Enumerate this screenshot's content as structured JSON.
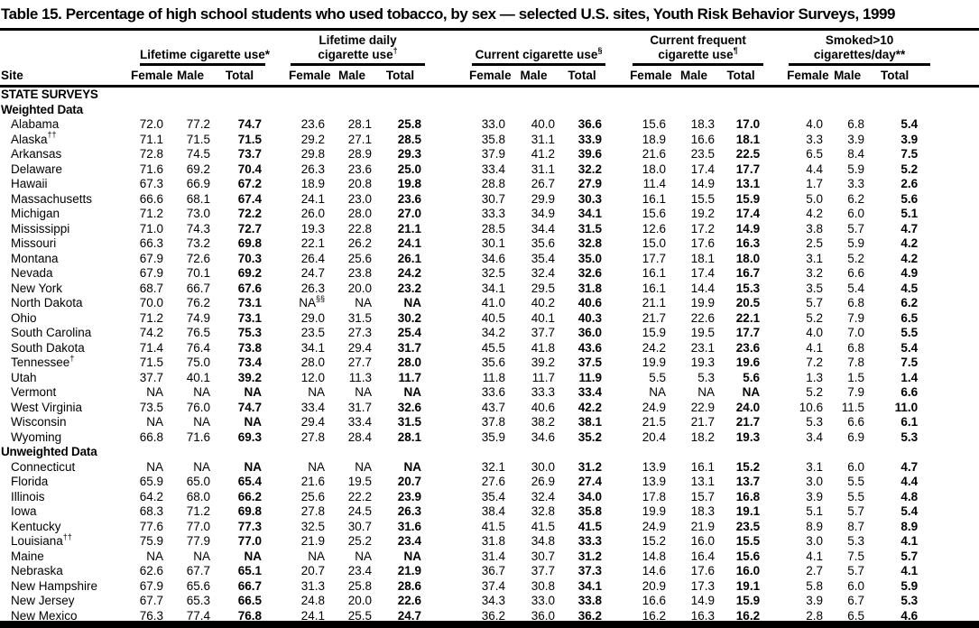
{
  "title": "Table 15. Percentage of high school students who used tobacco, by sex — selected U.S. sites, Youth Risk Behavior Surveys, 1999",
  "table": {
    "site_header": "Site",
    "groups": [
      {
        "lines": [
          "Lifetime cigarette use*"
        ]
      },
      {
        "lines": [
          "Lifetime daily",
          "cigarette use^†"
        ]
      },
      {
        "lines": [
          "Current cigarette use^§"
        ]
      },
      {
        "lines": [
          "Current frequent",
          "cigarette use^¶"
        ]
      },
      {
        "lines": [
          "Smoked>10",
          "cigarettes/day**"
        ]
      }
    ],
    "subheaders": [
      "Female",
      "Male",
      "Total"
    ],
    "rows": [
      {
        "kind": "section",
        "label": "STATE SURVEYS"
      },
      {
        "kind": "section",
        "label": "Weighted Data"
      },
      {
        "kind": "data",
        "site": "Alabama",
        "values": [
          "72.0",
          "77.2",
          "74.7",
          "23.6",
          "28.1",
          "25.8",
          "33.0",
          "40.0",
          "36.6",
          "15.6",
          "18.3",
          "17.0",
          "4.0",
          "6.8",
          "5.4"
        ]
      },
      {
        "kind": "data",
        "site": "Alaska^††",
        "values": [
          "71.1",
          "71.5",
          "71.5",
          "29.2",
          "27.1",
          "28.5",
          "35.8",
          "31.1",
          "33.9",
          "18.9",
          "16.6",
          "18.1",
          "3.3",
          "3.9",
          "3.9"
        ]
      },
      {
        "kind": "data",
        "site": "Arkansas",
        "values": [
          "72.8",
          "74.5",
          "73.7",
          "29.8",
          "28.9",
          "29.3",
          "37.9",
          "41.2",
          "39.6",
          "21.6",
          "23.5",
          "22.5",
          "6.5",
          "8.4",
          "7.5"
        ]
      },
      {
        "kind": "data",
        "site": "Delaware",
        "values": [
          "71.6",
          "69.2",
          "70.4",
          "26.3",
          "23.6",
          "25.0",
          "33.4",
          "31.1",
          "32.2",
          "18.0",
          "17.4",
          "17.7",
          "4.4",
          "5.9",
          "5.2"
        ]
      },
      {
        "kind": "data",
        "site": "Hawaii",
        "values": [
          "67.3",
          "66.9",
          "67.2",
          "18.9",
          "20.8",
          "19.8",
          "28.8",
          "26.7",
          "27.9",
          "11.4",
          "14.9",
          "13.1",
          "1.7",
          "3.3",
          "2.6"
        ]
      },
      {
        "kind": "data",
        "site": "Massachusetts",
        "values": [
          "66.6",
          "68.1",
          "67.4",
          "24.1",
          "23.0",
          "23.6",
          "30.7",
          "29.9",
          "30.3",
          "16.1",
          "15.5",
          "15.9",
          "5.0",
          "6.2",
          "5.6"
        ]
      },
      {
        "kind": "data",
        "site": "Michigan",
        "values": [
          "71.2",
          "73.0",
          "72.2",
          "26.0",
          "28.0",
          "27.0",
          "33.3",
          "34.9",
          "34.1",
          "15.6",
          "19.2",
          "17.4",
          "4.2",
          "6.0",
          "5.1"
        ]
      },
      {
        "kind": "data",
        "site": "Mississippi",
        "values": [
          "71.0",
          "74.3",
          "72.7",
          "19.3",
          "22.8",
          "21.1",
          "28.5",
          "34.4",
          "31.5",
          "12.6",
          "17.2",
          "14.9",
          "3.8",
          "5.7",
          "4.7"
        ]
      },
      {
        "kind": "data",
        "site": "Missouri",
        "values": [
          "66.3",
          "73.2",
          "69.8",
          "22.1",
          "26.2",
          "24.1",
          "30.1",
          "35.6",
          "32.8",
          "15.0",
          "17.6",
          "16.3",
          "2.5",
          "5.9",
          "4.2"
        ]
      },
      {
        "kind": "data",
        "site": "Montana",
        "values": [
          "67.9",
          "72.6",
          "70.3",
          "26.4",
          "25.6",
          "26.1",
          "34.6",
          "35.4",
          "35.0",
          "17.7",
          "18.1",
          "18.0",
          "3.1",
          "5.2",
          "4.2"
        ]
      },
      {
        "kind": "data",
        "site": "Nevada",
        "values": [
          "67.9",
          "70.1",
          "69.2",
          "24.7",
          "23.8",
          "24.2",
          "32.5",
          "32.4",
          "32.6",
          "16.1",
          "17.4",
          "16.7",
          "3.2",
          "6.6",
          "4.9"
        ]
      },
      {
        "kind": "data",
        "site": "New York",
        "values": [
          "68.7",
          "66.7",
          "67.6",
          "26.3",
          "20.0",
          "23.2",
          "34.1",
          "29.5",
          "31.8",
          "16.1",
          "14.4",
          "15.3",
          "3.5",
          "5.4",
          "4.5"
        ]
      },
      {
        "kind": "data",
        "site": "North Dakota",
        "values": [
          "70.0",
          "76.2",
          "73.1",
          "NA^§§",
          "NA",
          "NA",
          "41.0",
          "40.2",
          "40.6",
          "21.1",
          "19.9",
          "20.5",
          "5.7",
          "6.8",
          "6.2"
        ]
      },
      {
        "kind": "data",
        "site": "Ohio",
        "values": [
          "71.2",
          "74.9",
          "73.1",
          "29.0",
          "31.5",
          "30.2",
          "40.5",
          "40.1",
          "40.3",
          "21.7",
          "22.6",
          "22.1",
          "5.2",
          "7.9",
          "6.5"
        ]
      },
      {
        "kind": "data",
        "site": "South Carolina",
        "values": [
          "74.2",
          "76.5",
          "75.3",
          "23.5",
          "27.3",
          "25.4",
          "34.2",
          "37.7",
          "36.0",
          "15.9",
          "19.5",
          "17.7",
          "4.0",
          "7.0",
          "5.5"
        ]
      },
      {
        "kind": "data",
        "site": "South Dakota",
        "values": [
          "71.4",
          "76.4",
          "73.8",
          "34.1",
          "29.4",
          "31.7",
          "45.5",
          "41.8",
          "43.6",
          "24.2",
          "23.1",
          "23.6",
          "4.1",
          "6.8",
          "5.4"
        ]
      },
      {
        "kind": "data",
        "site": "Tennessee^†",
        "values": [
          "71.5",
          "75.0",
          "73.4",
          "28.0",
          "27.7",
          "28.0",
          "35.6",
          "39.2",
          "37.5",
          "19.9",
          "19.3",
          "19.6",
          "7.2",
          "7.8",
          "7.5"
        ]
      },
      {
        "kind": "data",
        "site": "Utah",
        "values": [
          "37.7",
          "40.1",
          "39.2",
          "12.0",
          "11.3",
          "11.7",
          "11.8",
          "11.7",
          "11.9",
          "5.5",
          "5.3",
          "5.6",
          "1.3",
          "1.5",
          "1.4"
        ]
      },
      {
        "kind": "data",
        "site": "Vermont",
        "values": [
          "NA",
          "NA",
          "NA",
          "NA",
          "NA",
          "NA",
          "33.6",
          "33.3",
          "33.4",
          "NA",
          "NA",
          "NA",
          "5.2",
          "7.9",
          "6.6"
        ]
      },
      {
        "kind": "data",
        "site": "West Virginia",
        "values": [
          "73.5",
          "76.0",
          "74.7",
          "33.4",
          "31.7",
          "32.6",
          "43.7",
          "40.6",
          "42.2",
          "24.9",
          "22.9",
          "24.0",
          "10.6",
          "11.5",
          "11.0"
        ]
      },
      {
        "kind": "data",
        "site": "Wisconsin",
        "values": [
          "NA",
          "NA",
          "NA",
          "29.4",
          "33.4",
          "31.5",
          "37.8",
          "38.2",
          "38.1",
          "21.5",
          "21.7",
          "21.7",
          "5.3",
          "6.6",
          "6.1"
        ]
      },
      {
        "kind": "data",
        "site": "Wyoming",
        "values": [
          "66.8",
          "71.6",
          "69.3",
          "27.8",
          "28.4",
          "28.1",
          "35.9",
          "34.6",
          "35.2",
          "20.4",
          "18.2",
          "19.3",
          "3.4",
          "6.9",
          "5.3"
        ]
      },
      {
        "kind": "section",
        "label": "Unweighted Data"
      },
      {
        "kind": "data",
        "site": "Connecticut",
        "values": [
          "NA",
          "NA",
          "NA",
          "NA",
          "NA",
          "NA",
          "32.1",
          "30.0",
          "31.2",
          "13.9",
          "16.1",
          "15.2",
          "3.1",
          "6.0",
          "4.7"
        ]
      },
      {
        "kind": "data",
        "site": "Florida",
        "values": [
          "65.9",
          "65.0",
          "65.4",
          "21.6",
          "19.5",
          "20.7",
          "27.6",
          "26.9",
          "27.4",
          "13.9",
          "13.1",
          "13.7",
          "3.0",
          "5.5",
          "4.4"
        ]
      },
      {
        "kind": "data",
        "site": "Illinois",
        "values": [
          "64.2",
          "68.0",
          "66.2",
          "25.6",
          "22.2",
          "23.9",
          "35.4",
          "32.4",
          "34.0",
          "17.8",
          "15.7",
          "16.8",
          "3.9",
          "5.5",
          "4.8"
        ]
      },
      {
        "kind": "data",
        "site": "Iowa",
        "values": [
          "68.3",
          "71.2",
          "69.8",
          "27.8",
          "24.5",
          "26.3",
          "38.4",
          "32.8",
          "35.8",
          "19.9",
          "18.3",
          "19.1",
          "5.1",
          "5.7",
          "5.4"
        ]
      },
      {
        "kind": "data",
        "site": "Kentucky",
        "values": [
          "77.6",
          "77.0",
          "77.3",
          "32.5",
          "30.7",
          "31.6",
          "41.5",
          "41.5",
          "41.5",
          "24.9",
          "21.9",
          "23.5",
          "8.9",
          "8.7",
          "8.9"
        ]
      },
      {
        "kind": "data",
        "site": "Louisiana^††",
        "values": [
          "75.9",
          "77.9",
          "77.0",
          "21.9",
          "25.2",
          "23.4",
          "31.8",
          "34.8",
          "33.3",
          "15.2",
          "16.0",
          "15.5",
          "3.0",
          "5.3",
          "4.1"
        ]
      },
      {
        "kind": "data",
        "site": "Maine",
        "values": [
          "NA",
          "NA",
          "NA",
          "NA",
          "NA",
          "NA",
          "31.4",
          "30.7",
          "31.2",
          "14.8",
          "16.4",
          "15.6",
          "4.1",
          "7.5",
          "5.7"
        ]
      },
      {
        "kind": "data",
        "site": "Nebraska",
        "values": [
          "62.6",
          "67.7",
          "65.1",
          "20.7",
          "23.4",
          "21.9",
          "36.7",
          "37.7",
          "37.3",
          "14.6",
          "17.6",
          "16.0",
          "2.7",
          "5.7",
          "4.1"
        ]
      },
      {
        "kind": "data",
        "site": "New Hampshire",
        "values": [
          "67.9",
          "65.6",
          "66.7",
          "31.3",
          "25.8",
          "28.6",
          "37.4",
          "30.8",
          "34.1",
          "20.9",
          "17.3",
          "19.1",
          "5.8",
          "6.0",
          "5.9"
        ]
      },
      {
        "kind": "data",
        "site": "New Jersey",
        "values": [
          "67.7",
          "65.3",
          "66.5",
          "24.8",
          "20.0",
          "22.6",
          "34.3",
          "33.0",
          "33.8",
          "16.6",
          "14.9",
          "15.9",
          "3.9",
          "6.7",
          "5.3"
        ]
      },
      {
        "kind": "data",
        "site": "New Mexico",
        "values": [
          "76.3",
          "77.4",
          "76.8",
          "24.1",
          "25.5",
          "24.7",
          "36.2",
          "36.0",
          "36.2",
          "16.2",
          "16.3",
          "16.2",
          "2.8",
          "6.5",
          "4.6"
        ]
      }
    ]
  }
}
